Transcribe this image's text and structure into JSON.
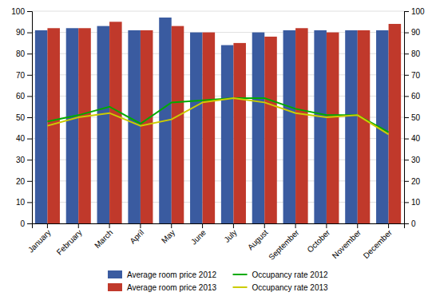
{
  "chart_data": {
    "type": "bar",
    "categories": [
      "January",
      "February",
      "March",
      "April",
      "May",
      "June",
      "July",
      "August",
      "September",
      "October",
      "November",
      "December"
    ],
    "series": [
      {
        "name": "Average room price 2012",
        "type": "bar",
        "color": "#3A5BA0",
        "values": [
          91,
          92,
          93,
          91,
          97,
          90,
          84,
          90,
          91,
          91,
          91,
          91
        ]
      },
      {
        "name": "Average room price 2013",
        "type": "bar",
        "color": "#C0392B",
        "values": [
          92,
          92,
          95,
          91,
          93,
          90,
          85,
          88,
          92,
          90,
          91,
          94
        ]
      },
      {
        "name": "Occupancy rate 2012",
        "type": "line",
        "color": "#00AA00",
        "axis": "y2",
        "values": [
          48,
          51,
          55,
          47,
          57,
          58,
          59,
          59,
          54,
          51,
          51,
          43
        ]
      },
      {
        "name": "Occupancy rate 2013",
        "type": "line",
        "color": "#CCCC00",
        "axis": "y2",
        "values": [
          46,
          50,
          52,
          46,
          49,
          57,
          59,
          57,
          52,
          50,
          51,
          42
        ]
      }
    ],
    "ylim": [
      0,
      100
    ],
    "yticks": [
      0,
      10,
      20,
      30,
      40,
      50,
      60,
      70,
      80,
      90,
      100
    ],
    "y2lim": [
      0,
      100
    ],
    "y2ticks": [
      0,
      10,
      20,
      30,
      40,
      50,
      60,
      70,
      80,
      90,
      100
    ],
    "grid": true,
    "legend": "bottom"
  }
}
